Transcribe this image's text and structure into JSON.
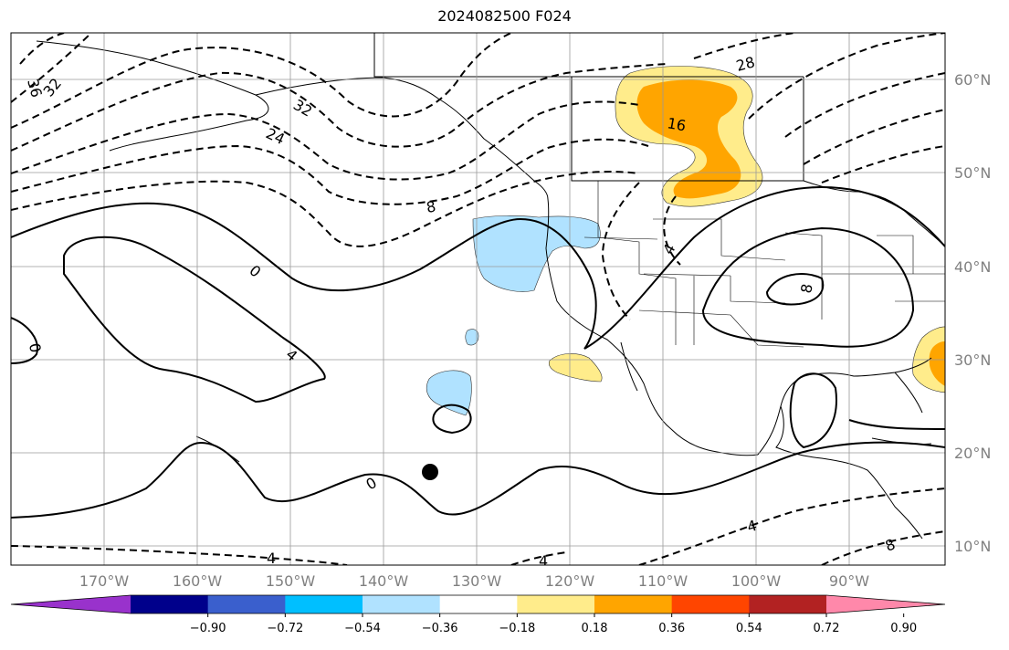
{
  "title": "2024082500 F024",
  "latitude_labels": [
    "60°N",
    "50°N",
    "40°N",
    "30°N",
    "20°N",
    "10°N"
  ],
  "longitude_labels": [
    "170°W",
    "160°W",
    "150°W",
    "140°W",
    "130°W",
    "120°W",
    "110°W",
    "100°W",
    "90°W"
  ],
  "colorbar": {
    "colors": [
      "#9932cc",
      "#00008b",
      "#3a5fcd",
      "#00bfff",
      "#b0e2ff",
      "#ffffff",
      "#ffec8b",
      "#ffa500",
      "#ff4500",
      "#b22222",
      "#ff88aa"
    ],
    "tick_labels": [
      "−0.90",
      "−0.72",
      "−0.54",
      "−0.36",
      "−0.18",
      "0.18",
      "0.36",
      "0.54",
      "0.72",
      "0.90"
    ]
  },
  "contour_labels": [
    "36",
    "32",
    "32",
    "24",
    "28",
    "16",
    "8",
    "4",
    "0",
    "0",
    "4",
    "8",
    "0",
    "4",
    "8",
    "4",
    "4"
  ],
  "marker": {
    "name": "black-dot",
    "lon": -135,
    "lat": 18
  }
}
